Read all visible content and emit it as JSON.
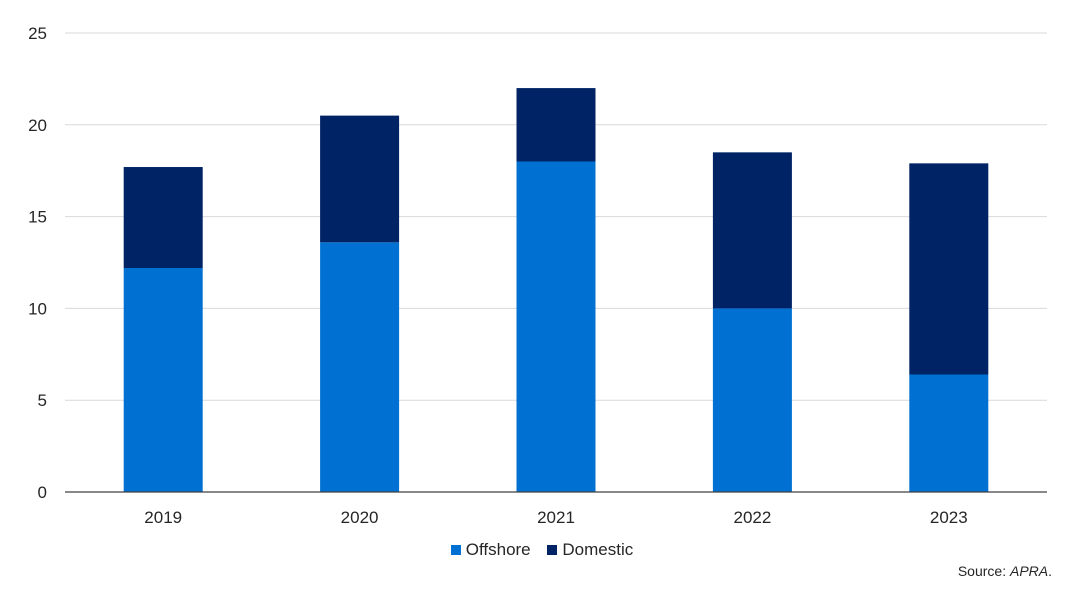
{
  "chart_data": {
    "type": "bar",
    "stacked": true,
    "categories": [
      "2019",
      "2020",
      "2021",
      "2022",
      "2023"
    ],
    "series": [
      {
        "name": "Offshore",
        "color": "#0070D2",
        "values": [
          12.2,
          13.6,
          18.0,
          10.0,
          6.4
        ]
      },
      {
        "name": "Domestic",
        "color": "#002366",
        "values": [
          5.5,
          6.9,
          4.0,
          8.5,
          11.5
        ]
      }
    ],
    "ylim": [
      0,
      25
    ],
    "yticks": [
      0,
      5,
      10,
      15,
      20,
      25
    ],
    "grid": true,
    "legend_position": "bottom"
  },
  "source": {
    "prefix": "Source: ",
    "name": "APRA",
    "suffix": "."
  }
}
